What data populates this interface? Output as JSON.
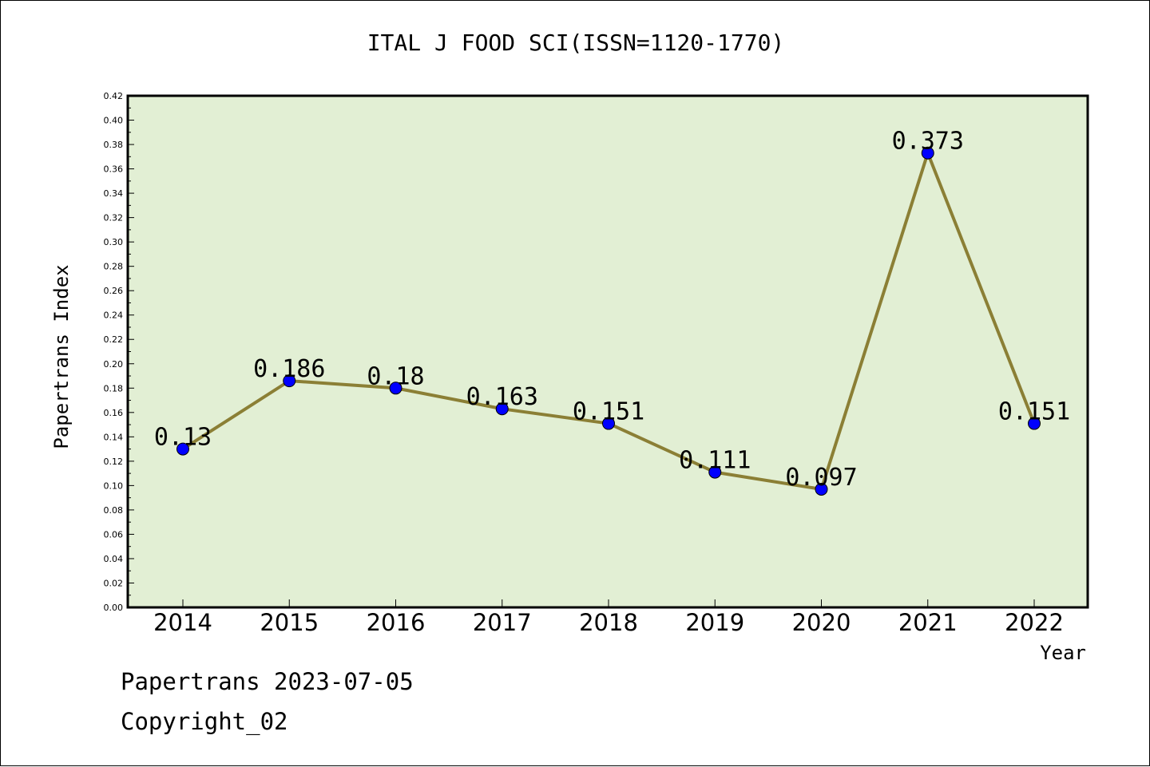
{
  "title": "ITAL J FOOD SCI(ISSN=1120-1770)",
  "footer": {
    "date_line": "Papertrans 2023-07-05",
    "copyright_line": "Copyright_02"
  },
  "colors": {
    "plot_background": "#e2efd4",
    "line": "#8b7f35",
    "marker": "#0000ff",
    "axis": "#000000"
  },
  "chart_data": {
    "type": "line",
    "xlabel": "Year",
    "ylabel": "Papertrans Index",
    "ylim": [
      0,
      0.42
    ],
    "ytick_step": 0.02,
    "ytick_labels": [
      "0.00",
      "0.02",
      "0.04",
      "0.06",
      "0.08",
      "0.10",
      "0.12",
      "0.14",
      "0.16",
      "0.18",
      "0.20",
      "0.22",
      "0.24",
      "0.26",
      "0.28",
      "0.30",
      "0.32",
      "0.34",
      "0.36",
      "0.38",
      "0.40",
      "0.42"
    ],
    "categories": [
      "2014",
      "2015",
      "2016",
      "2017",
      "2018",
      "2019",
      "2020",
      "2021",
      "2022"
    ],
    "series": [
      {
        "values": [
          0.13,
          0.186,
          0.18,
          0.163,
          0.151,
          0.111,
          0.097,
          0.373,
          0.151
        ],
        "data_labels": [
          "0.13",
          "0.186",
          "0.18",
          "0.163",
          "0.151",
          "0.111",
          "0.097",
          "0.373",
          "0.151"
        ]
      }
    ],
    "grid": false,
    "legend": "none"
  }
}
